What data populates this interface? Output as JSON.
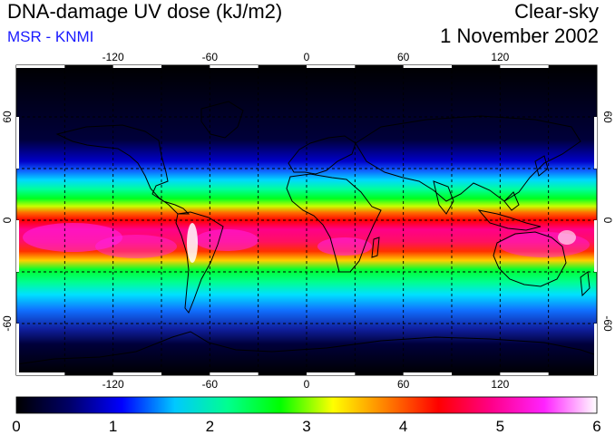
{
  "header": {
    "title": "DNA-damage UV dose (kJ/m2)",
    "subtitle": "MSR - KNMI",
    "condition": "Clear-sky",
    "date": "1 November 2002"
  },
  "map": {
    "lon_range": [
      -180,
      180
    ],
    "lat_range": [
      -90,
      90
    ],
    "lon_ticks": [
      -120,
      -60,
      0,
      60,
      120
    ],
    "lon_tick_labels": [
      "-120",
      "-60",
      "0",
      "60",
      "120"
    ],
    "lat_ticks": [
      60,
      0,
      -60
    ],
    "lat_tick_labels": [
      "60",
      "0",
      "-60"
    ],
    "grid_spacing_deg": 30,
    "grid": true
  },
  "colorbar": {
    "min": 0,
    "max": 6,
    "tick_labels": [
      "0",
      "1",
      "2",
      "3",
      "4",
      "5",
      "6"
    ],
    "colors": [
      "#000000",
      "#000066",
      "#0000ff",
      "#00c8ff",
      "#00ff90",
      "#00ff00",
      "#ffff00",
      "#ff8000",
      "#ff0000",
      "#ff0088",
      "#ff22ff",
      "#ffffff"
    ]
  }
}
